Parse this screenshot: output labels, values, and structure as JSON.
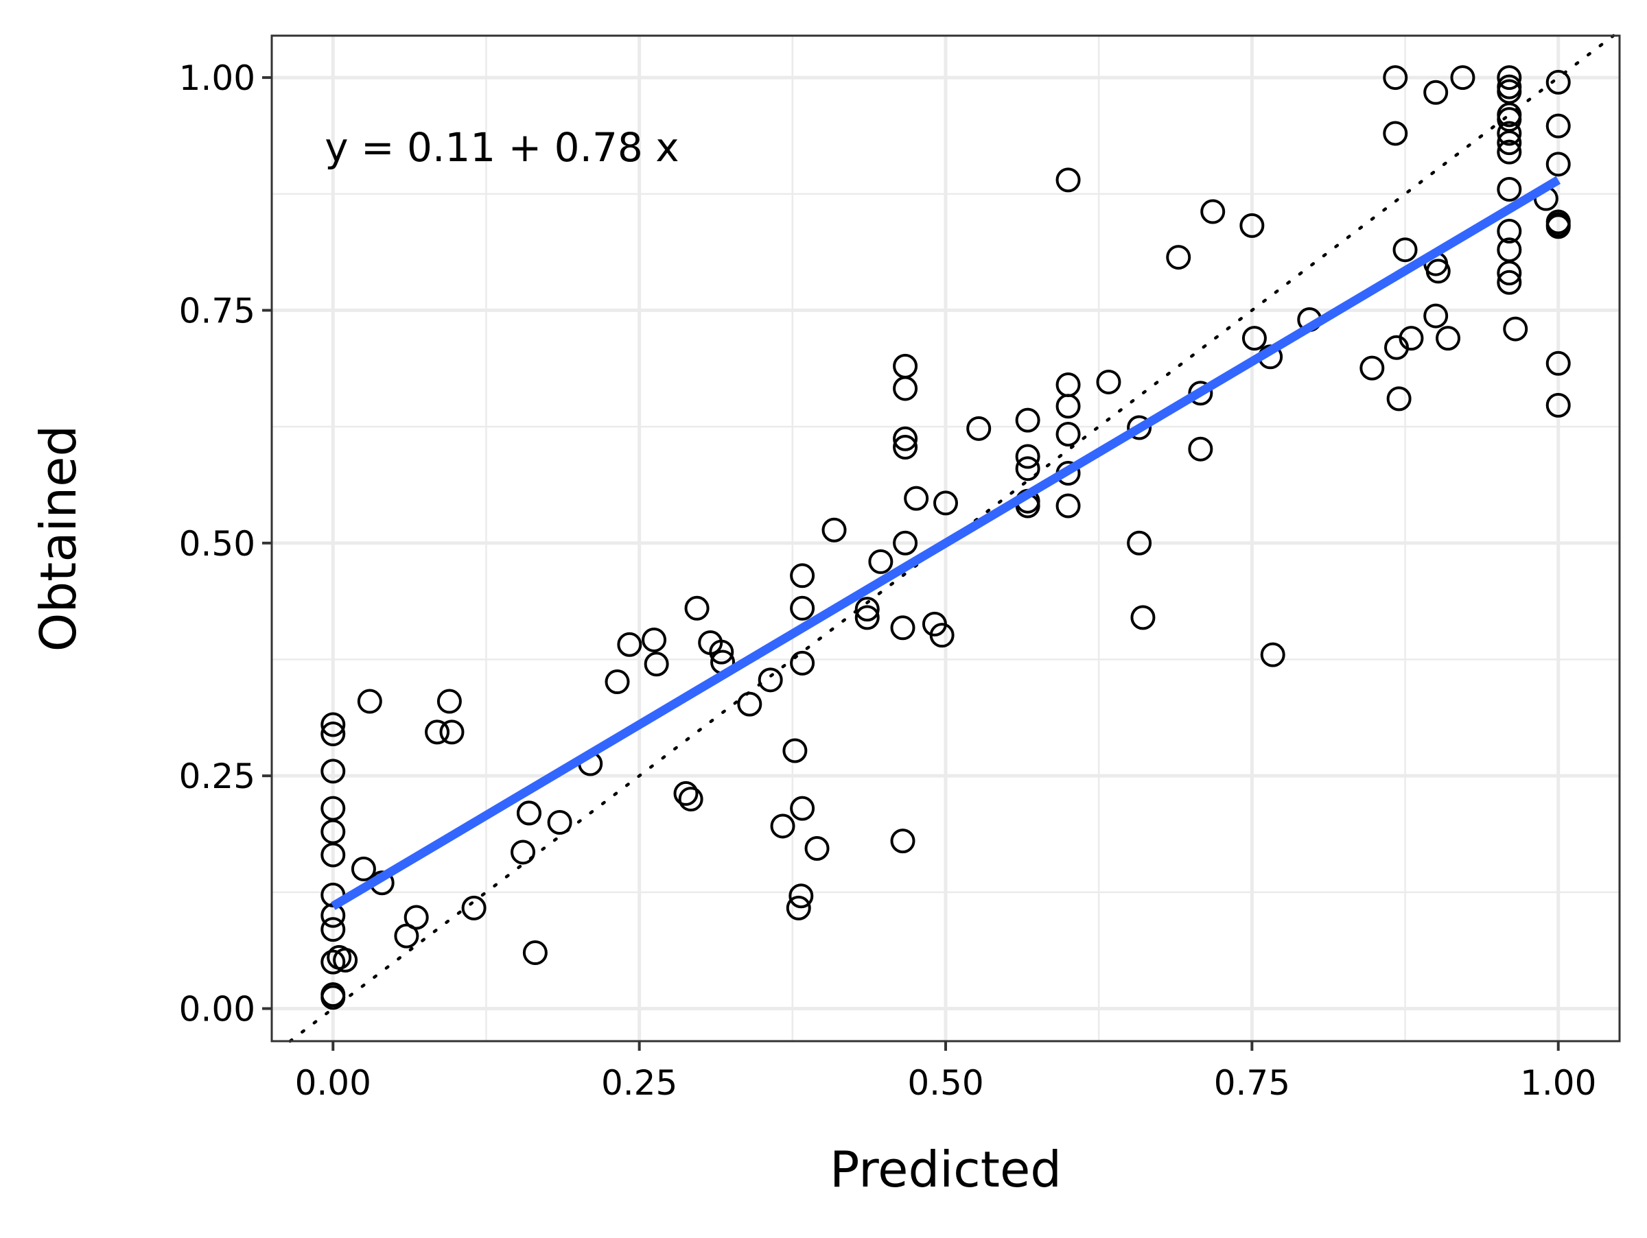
{
  "chart_data": {
    "type": "scatter",
    "title": "",
    "xlabel": "Predicted",
    "ylabel": "Obtained",
    "xlim": [
      -0.05,
      1.05
    ],
    "ylim": [
      -0.035,
      1.045
    ],
    "x_ticks": [
      0.0,
      0.25,
      0.5,
      0.75,
      1.0
    ],
    "x_tick_labels": [
      "0.00",
      "0.25",
      "0.50",
      "0.75",
      "1.00"
    ],
    "y_ticks": [
      0.0,
      0.25,
      0.5,
      0.75,
      1.0
    ],
    "y_tick_labels": [
      "0.00",
      "0.25",
      "0.50",
      "0.75",
      "1.00"
    ],
    "grid": true,
    "annotation": "y = 0.11 + 0.78 x",
    "fit_line": {
      "intercept": 0.11,
      "slope": 0.78,
      "x_range": [
        0.0,
        1.0
      ],
      "color": "#3366ff"
    },
    "reference_line": {
      "intercept": 0.0,
      "slope": 1.0,
      "style": "dotted",
      "color": "#000000"
    },
    "points": [
      [
        0.0,
        0.015
      ],
      [
        0.0,
        0.012
      ],
      [
        0.0,
        0.05
      ],
      [
        0.005,
        0.055
      ],
      [
        0.01,
        0.052
      ],
      [
        0.0,
        0.085
      ],
      [
        0.0,
        0.1
      ],
      [
        0.0,
        0.122
      ],
      [
        0.0,
        0.165
      ],
      [
        0.0,
        0.19
      ],
      [
        0.0,
        0.215
      ],
      [
        0.0,
        0.255
      ],
      [
        0.0,
        0.295
      ],
      [
        0.0,
        0.305
      ],
      [
        0.025,
        0.15
      ],
      [
        0.04,
        0.135
      ],
      [
        0.03,
        0.33
      ],
      [
        0.06,
        0.078
      ],
      [
        0.068,
        0.098
      ],
      [
        0.085,
        0.297
      ],
      [
        0.097,
        0.297
      ],
      [
        0.095,
        0.33
      ],
      [
        0.115,
        0.108
      ],
      [
        0.155,
        0.168
      ],
      [
        0.16,
        0.21
      ],
      [
        0.16,
        0.21
      ],
      [
        0.165,
        0.06
      ],
      [
        0.185,
        0.2
      ],
      [
        0.21,
        0.263
      ],
      [
        0.232,
        0.351
      ],
      [
        0.242,
        0.391
      ],
      [
        0.262,
        0.396
      ],
      [
        0.264,
        0.37
      ],
      [
        0.288,
        0.231
      ],
      [
        0.292,
        0.225
      ],
      [
        0.297,
        0.43
      ],
      [
        0.308,
        0.393
      ],
      [
        0.317,
        0.383
      ],
      [
        0.318,
        0.372
      ],
      [
        0.34,
        0.327
      ],
      [
        0.357,
        0.353
      ],
      [
        0.367,
        0.196
      ],
      [
        0.377,
        0.277
      ],
      [
        0.38,
        0.108
      ],
      [
        0.382,
        0.121
      ],
      [
        0.383,
        0.215
      ],
      [
        0.383,
        0.465
      ],
      [
        0.383,
        0.43
      ],
      [
        0.383,
        0.371
      ],
      [
        0.395,
        0.172
      ],
      [
        0.409,
        0.514
      ],
      [
        0.436,
        0.429
      ],
      [
        0.436,
        0.42
      ],
      [
        0.447,
        0.48
      ],
      [
        0.465,
        0.409
      ],
      [
        0.465,
        0.18
      ],
      [
        0.467,
        0.69
      ],
      [
        0.467,
        0.666
      ],
      [
        0.467,
        0.612
      ],
      [
        0.467,
        0.603
      ],
      [
        0.467,
        0.5
      ],
      [
        0.476,
        0.548
      ],
      [
        0.491,
        0.413
      ],
      [
        0.497,
        0.401
      ],
      [
        0.5,
        0.543
      ],
      [
        0.527,
        0.623
      ],
      [
        0.567,
        0.632
      ],
      [
        0.567,
        0.593
      ],
      [
        0.567,
        0.58
      ],
      [
        0.567,
        0.545
      ],
      [
        0.567,
        0.54
      ],
      [
        0.6,
        0.89
      ],
      [
        0.6,
        0.67
      ],
      [
        0.6,
        0.647
      ],
      [
        0.6,
        0.617
      ],
      [
        0.6,
        0.575
      ],
      [
        0.6,
        0.54
      ],
      [
        0.633,
        0.673
      ],
      [
        0.658,
        0.624
      ],
      [
        0.658,
        0.5
      ],
      [
        0.661,
        0.42
      ],
      [
        0.69,
        0.807
      ],
      [
        0.708,
        0.661
      ],
      [
        0.708,
        0.601
      ],
      [
        0.718,
        0.856
      ],
      [
        0.75,
        0.841
      ],
      [
        0.752,
        0.72
      ],
      [
        0.765,
        0.7
      ],
      [
        0.767,
        0.38
      ],
      [
        0.797,
        0.74
      ],
      [
        0.848,
        0.688
      ],
      [
        0.867,
        1.0
      ],
      [
        0.867,
        0.94
      ],
      [
        0.868,
        0.71
      ],
      [
        0.87,
        0.655
      ],
      [
        0.875,
        0.815
      ],
      [
        0.88,
        0.72
      ],
      [
        0.9,
        0.8
      ],
      [
        0.9,
        0.984
      ],
      [
        0.902,
        0.792
      ],
      [
        0.9,
        0.744
      ],
      [
        0.91,
        0.72
      ],
      [
        0.922,
        1.0
      ],
      [
        0.96,
        1.0
      ],
      [
        0.96,
        0.99
      ],
      [
        0.96,
        0.985
      ],
      [
        0.96,
        0.96
      ],
      [
        0.96,
        0.955
      ],
      [
        0.96,
        0.94
      ],
      [
        0.96,
        0.93
      ],
      [
        0.96,
        0.92
      ],
      [
        0.96,
        0.88
      ],
      [
        0.96,
        0.835
      ],
      [
        0.96,
        0.815
      ],
      [
        0.96,
        0.79
      ],
      [
        0.96,
        0.78
      ],
      [
        0.965,
        0.73
      ],
      [
        0.99,
        0.87
      ],
      [
        1.0,
        0.995
      ],
      [
        1.0,
        0.948
      ],
      [
        1.0,
        0.907
      ],
      [
        1.0,
        0.845
      ],
      [
        1.0,
        0.842
      ],
      [
        1.0,
        0.84
      ],
      [
        1.0,
        0.693
      ],
      [
        1.0,
        0.648
      ]
    ]
  }
}
